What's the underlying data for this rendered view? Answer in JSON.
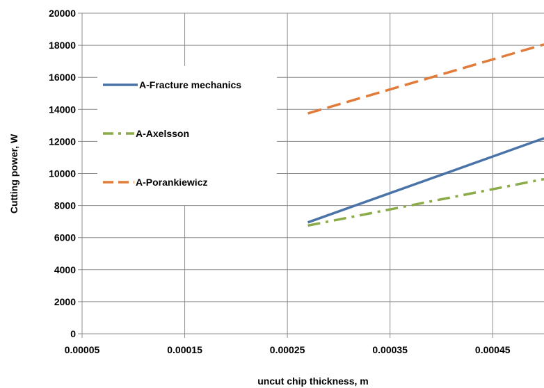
{
  "chart_data": {
    "type": "line",
    "xlabel": "uncut chip thickness, m",
    "ylabel": "Cutting power, W",
    "xlim": [
      5e-05,
      0.0005
    ],
    "ylim": [
      0,
      20000
    ],
    "x_ticks": [
      "0.00005",
      "0.00015",
      "0.00025",
      "0.00035",
      "0.00045"
    ],
    "y_ticks": [
      "0",
      "2000",
      "4000",
      "6000",
      "8000",
      "10000",
      "12000",
      "14000",
      "16000",
      "18000",
      "20000"
    ],
    "grid": true,
    "legend_position": "left",
    "series": [
      {
        "name": "A-Fracture mechanics",
        "color": "#4a74a8",
        "dash": "solid",
        "x": [
          0.00027,
          0.0005
        ],
        "y": [
          6950,
          12200
        ]
      },
      {
        "name": "A-Axelsson",
        "color": "#8aab47",
        "dash": "dashdot",
        "x": [
          0.00027,
          0.0005
        ],
        "y": [
          6750,
          9650
        ]
      },
      {
        "name": "A-Porankiewicz",
        "color": "#e07b39",
        "dash": "dashed",
        "x": [
          0.00027,
          0.0005
        ],
        "y": [
          13750,
          18050
        ]
      }
    ]
  }
}
